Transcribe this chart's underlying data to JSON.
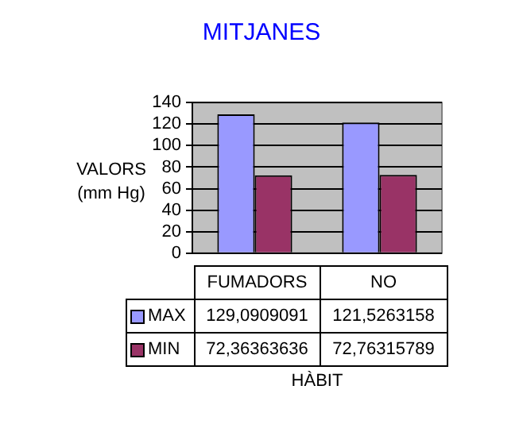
{
  "chart_data": {
    "type": "bar",
    "title": "MITJANES",
    "ylabel": "VALORS (mm Hg)",
    "xlabel": "HÀBIT",
    "categories": [
      "FUMADORS",
      "NO"
    ],
    "series": [
      {
        "name": "MAX",
        "color": "#9999ff",
        "values": [
          129.0909091,
          121.5263158
        ],
        "value_labels": [
          "129,0909091",
          "121,5263158"
        ]
      },
      {
        "name": "MIN",
        "color": "#993366",
        "values": [
          72.36363636,
          72.76315789
        ],
        "value_labels": [
          "72,36363636",
          "72,76315789"
        ]
      }
    ],
    "ylim": [
      0,
      140
    ],
    "yticks": [
      0,
      20,
      40,
      60,
      80,
      100,
      120,
      140
    ],
    "grid": "y",
    "legend": "bottom"
  }
}
